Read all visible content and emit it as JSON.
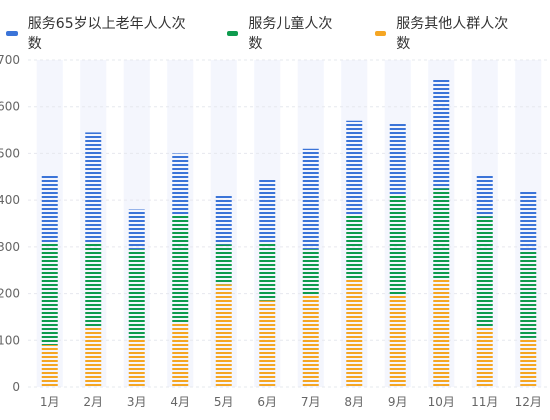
{
  "chart_data": {
    "type": "bar",
    "stacked": true,
    "categories": [
      "1月",
      "2月",
      "3月",
      "4月",
      "5月",
      "6月",
      "7月",
      "8月",
      "9月",
      "10月",
      "11月",
      "12月"
    ],
    "series": [
      {
        "name": "服务其他人群人次数",
        "color": "#F5A623",
        "values": [
          90,
          130,
          105,
          135,
          220,
          185,
          195,
          230,
          195,
          230,
          130,
          105
        ]
      },
      {
        "name": "服务儿童人次数",
        "color": "#0E9B4E",
        "values": [
          220,
          180,
          190,
          235,
          85,
          125,
          100,
          140,
          215,
          195,
          235,
          185
        ]
      },
      {
        "name": "服务65岁以上老年人人次数",
        "color": "#3B74D8",
        "values": [
          145,
          235,
          85,
          130,
          105,
          135,
          215,
          200,
          155,
          235,
          90,
          130
        ]
      }
    ],
    "legend_order": [
      "服务65岁以上老年人人次数",
      "服务儿童人次数",
      "服务其他人群人次数"
    ],
    "y_ticks": [
      0,
      100,
      200,
      300,
      400,
      500,
      600,
      700
    ],
    "ylim": [
      0,
      700
    ],
    "grid": true,
    "background_column_color": "#F4F6FD",
    "legend_position": "top"
  }
}
